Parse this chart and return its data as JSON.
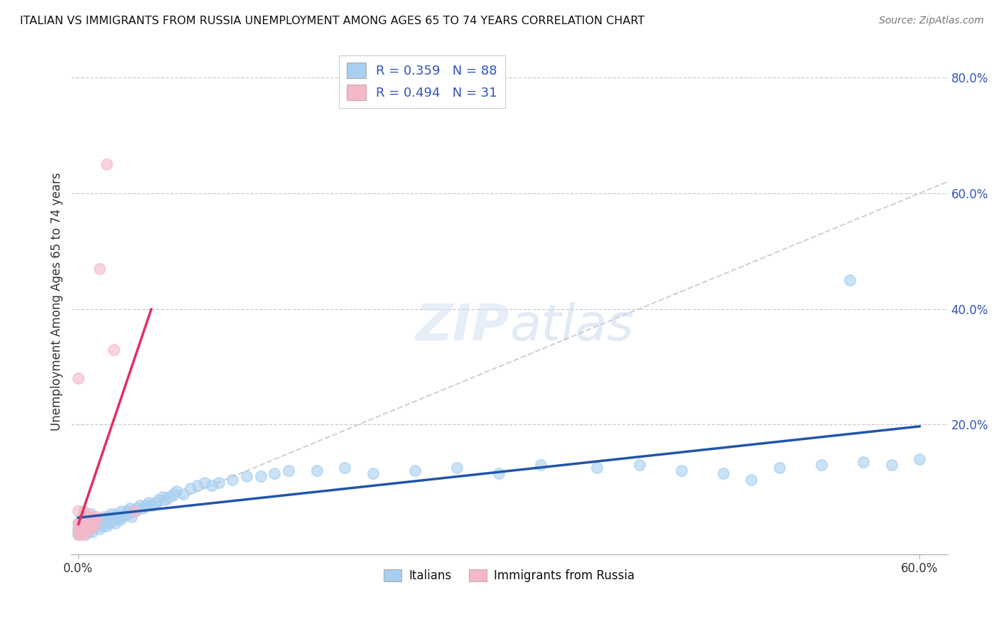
{
  "title": "ITALIAN VS IMMIGRANTS FROM RUSSIA UNEMPLOYMENT AMONG AGES 65 TO 74 YEARS CORRELATION CHART",
  "source": "Source: ZipAtlas.com",
  "ylabel": "Unemployment Among Ages 65 to 74 years",
  "xlim": [
    -0.005,
    0.62
  ],
  "ylim": [
    -0.025,
    0.85
  ],
  "xtick_positions": [
    0.0,
    0.6
  ],
  "xticklabels": [
    "0.0%",
    "60.0%"
  ],
  "ytick_positions": [
    0.2,
    0.4,
    0.6,
    0.8
  ],
  "yticklabels": [
    "20.0%",
    "40.0%",
    "60.0%",
    "80.0%"
  ],
  "italian_color": "#a8cff0",
  "russia_color": "#f5b8c8",
  "italian_line_color": "#2255aa",
  "russia_line_color": "#e03060",
  "diagonal_color": "#cccccc",
  "R_italian": 0.359,
  "N_italian": 88,
  "R_russia": 0.494,
  "N_russia": 31,
  "legend_label_italian": "Italians",
  "legend_label_russia": "Immigrants from Russia",
  "legend_text_color": "#3355bb",
  "ytick_color": "#3355bb",
  "it_x": [
    0.0,
    0.0,
    0.0,
    0.0,
    0.001,
    0.002,
    0.003,
    0.003,
    0.004,
    0.005,
    0.005,
    0.006,
    0.006,
    0.007,
    0.007,
    0.008,
    0.008,
    0.009,
    0.009,
    0.01,
    0.01,
    0.011,
    0.012,
    0.013,
    0.014,
    0.015,
    0.016,
    0.017,
    0.018,
    0.019,
    0.02,
    0.021,
    0.022,
    0.023,
    0.025,
    0.026,
    0.027,
    0.028,
    0.03,
    0.031,
    0.032,
    0.034,
    0.035,
    0.037,
    0.038,
    0.04,
    0.042,
    0.044,
    0.046,
    0.048,
    0.05,
    0.052,
    0.055,
    0.057,
    0.06,
    0.062,
    0.065,
    0.068,
    0.07,
    0.075,
    0.08,
    0.085,
    0.09,
    0.095,
    0.1,
    0.11,
    0.12,
    0.13,
    0.14,
    0.15,
    0.17,
    0.19,
    0.21,
    0.24,
    0.27,
    0.3,
    0.33,
    0.37,
    0.4,
    0.43,
    0.46,
    0.5,
    0.53,
    0.56,
    0.58,
    0.6,
    0.55,
    0.48
  ],
  "it_y": [
    0.01,
    0.015,
    0.02,
    0.03,
    0.025,
    0.02,
    0.015,
    0.03,
    0.025,
    0.01,
    0.03,
    0.02,
    0.04,
    0.015,
    0.035,
    0.02,
    0.04,
    0.025,
    0.045,
    0.015,
    0.035,
    0.03,
    0.025,
    0.035,
    0.03,
    0.02,
    0.035,
    0.025,
    0.04,
    0.03,
    0.025,
    0.04,
    0.03,
    0.045,
    0.035,
    0.03,
    0.045,
    0.04,
    0.035,
    0.05,
    0.04,
    0.045,
    0.05,
    0.055,
    0.04,
    0.05,
    0.055,
    0.06,
    0.055,
    0.06,
    0.065,
    0.06,
    0.065,
    0.07,
    0.075,
    0.07,
    0.075,
    0.08,
    0.085,
    0.08,
    0.09,
    0.095,
    0.1,
    0.095,
    0.1,
    0.105,
    0.11,
    0.11,
    0.115,
    0.12,
    0.12,
    0.125,
    0.115,
    0.12,
    0.125,
    0.115,
    0.13,
    0.125,
    0.13,
    0.12,
    0.115,
    0.125,
    0.13,
    0.135,
    0.13,
    0.14,
    0.45,
    0.105
  ],
  "ru_x": [
    0.0,
    0.0,
    0.0,
    0.0,
    0.0,
    0.002,
    0.002,
    0.003,
    0.003,
    0.003,
    0.004,
    0.004,
    0.004,
    0.005,
    0.005,
    0.005,
    0.006,
    0.006,
    0.007,
    0.007,
    0.008,
    0.008,
    0.009,
    0.01,
    0.011,
    0.012,
    0.013,
    0.015,
    0.02,
    0.025,
    0.04
  ],
  "ru_y": [
    0.01,
    0.02,
    0.03,
    0.05,
    0.28,
    0.015,
    0.03,
    0.01,
    0.025,
    0.04,
    0.02,
    0.035,
    0.05,
    0.015,
    0.03,
    0.045,
    0.02,
    0.035,
    0.025,
    0.04,
    0.02,
    0.035,
    0.03,
    0.04,
    0.025,
    0.03,
    0.04,
    0.47,
    0.65,
    0.33,
    0.05
  ],
  "ru_line_x_start": 0.0,
  "ru_line_x_end": 0.052,
  "it_line_x_start": 0.0,
  "it_line_x_end": 0.6
}
